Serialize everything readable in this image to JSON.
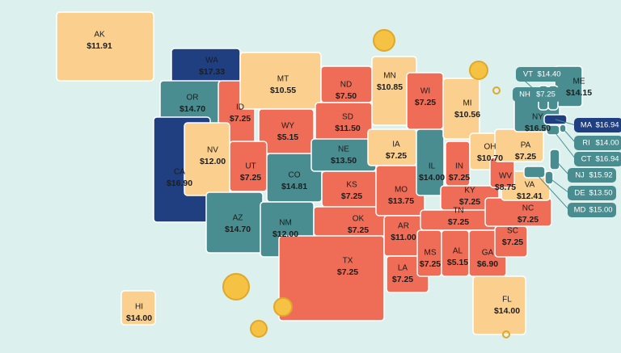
{
  "states": [
    {
      "abbr": "AK",
      "wage": "$11.91",
      "color": "#fbd08e"
    },
    {
      "abbr": "WA",
      "wage": "$17.33",
      "color": "#1f3f80"
    },
    {
      "abbr": "OR",
      "wage": "$14.70",
      "color": "#4a8d91"
    },
    {
      "abbr": "CA",
      "wage": "$16.90",
      "color": "#1f3f80"
    },
    {
      "abbr": "ID",
      "wage": "$7.25",
      "color": "#ef6c56"
    },
    {
      "abbr": "MT",
      "wage": "$10.55",
      "color": "#fbd08e"
    },
    {
      "abbr": "WY",
      "wage": "$5.15",
      "color": "#ef6c56"
    },
    {
      "abbr": "NV",
      "wage": "$12.00",
      "color": "#fbd08e"
    },
    {
      "abbr": "UT",
      "wage": "$7.25",
      "color": "#ef6c56"
    },
    {
      "abbr": "AZ",
      "wage": "$14.70",
      "color": "#4a8d91"
    },
    {
      "abbr": "CO",
      "wage": "$14.81",
      "color": "#4a8d91"
    },
    {
      "abbr": "NM",
      "wage": "$12.00",
      "color": "#4a8d91"
    },
    {
      "abbr": "ND",
      "wage": "$7.50",
      "color": "#ef6c56"
    },
    {
      "abbr": "SD",
      "wage": "$11.50",
      "color": "#ef6c56"
    },
    {
      "abbr": "NE",
      "wage": "$13.50",
      "color": "#4a8d91"
    },
    {
      "abbr": "KS",
      "wage": "$7.25",
      "color": "#ef6c56"
    },
    {
      "abbr": "OK",
      "wage": "$7.25",
      "color": "#ef6c56"
    },
    {
      "abbr": "TX",
      "wage": "$7.25",
      "color": "#ef6c56"
    },
    {
      "abbr": "MN",
      "wage": "$10.85",
      "color": "#fbd08e"
    },
    {
      "abbr": "IA",
      "wage": "$7.25",
      "color": "#fbd08e"
    },
    {
      "abbr": "MO",
      "wage": "$13.75",
      "color": "#ef6c56"
    },
    {
      "abbr": "AR",
      "wage": "$11.00",
      "color": "#ef6c56"
    },
    {
      "abbr": "LA",
      "wage": "$7.25",
      "color": "#ef6c56"
    },
    {
      "abbr": "WI",
      "wage": "$7.25",
      "color": "#ef6c56"
    },
    {
      "abbr": "IL",
      "wage": "$14.00",
      "color": "#4a8d91"
    },
    {
      "abbr": "MI",
      "wage": "$10.56",
      "color": "#fbd08e"
    },
    {
      "abbr": "IN",
      "wage": "$7.25",
      "color": "#ef6c56"
    },
    {
      "abbr": "OH",
      "wage": "$10.70",
      "color": "#fbd08e"
    },
    {
      "abbr": "KY",
      "wage": "$7.25",
      "color": "#ef6c56"
    },
    {
      "abbr": "TN",
      "wage": "$7.25",
      "color": "#ef6c56"
    },
    {
      "abbr": "MS",
      "wage": "$7.25",
      "color": "#ef6c56"
    },
    {
      "abbr": "AL",
      "wage": "$5.15",
      "color": "#ef6c56"
    },
    {
      "abbr": "GA",
      "wage": "$6.90",
      "color": "#ef6c56"
    },
    {
      "abbr": "FL",
      "wage": "$14.00",
      "color": "#fbd08e"
    },
    {
      "abbr": "SC",
      "wage": "$7.25",
      "color": "#ef6c56"
    },
    {
      "abbr": "NC",
      "wage": "$7.25",
      "color": "#ef6c56"
    },
    {
      "abbr": "VA",
      "wage": "$12.41",
      "color": "#fbd08e"
    },
    {
      "abbr": "WV",
      "wage": "$8.75",
      "color": "#ef6c56"
    },
    {
      "abbr": "PA",
      "wage": "$7.25",
      "color": "#fbd08e"
    },
    {
      "abbr": "NY",
      "wage": "$16.50",
      "color": "#4a8d91"
    },
    {
      "abbr": "ME",
      "wage": "$14.15",
      "color": "#4a8d91"
    },
    {
      "abbr": "VT",
      "wage": "$14.40",
      "color": "#4a8d91"
    },
    {
      "abbr": "NH",
      "wage": "$7.25",
      "color": "#4a8d91"
    },
    {
      "abbr": "MA",
      "wage": "$16.94",
      "color": "#1f3f80"
    },
    {
      "abbr": "RI",
      "wage": "$14.00",
      "color": "#4a8d91"
    },
    {
      "abbr": "CT",
      "wage": "$16.94",
      "color": "#4a8d91"
    },
    {
      "abbr": "NJ",
      "wage": "$15.92",
      "color": "#4a8d91"
    },
    {
      "abbr": "DE",
      "wage": "$13.50",
      "color": "#4a8d91"
    },
    {
      "abbr": "MD",
      "wage": "$15.00",
      "color": "#4a8d91"
    },
    {
      "abbr": "HI",
      "wage": "$14.00",
      "color": "#fbd08e"
    }
  ]
}
